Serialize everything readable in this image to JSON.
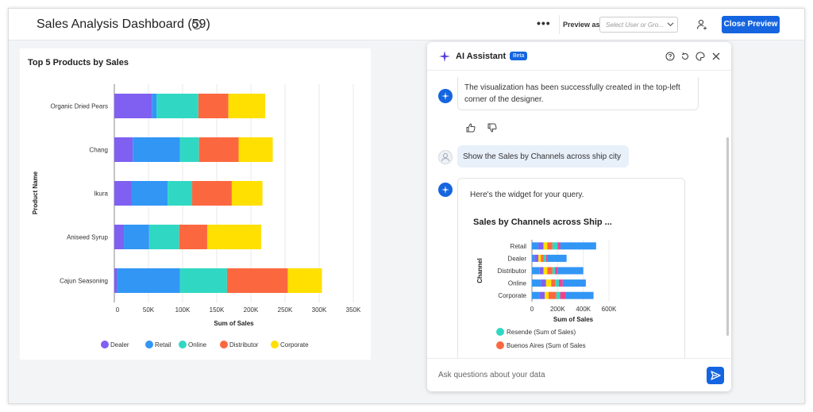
{
  "header": {
    "title": "Sales Analysis Dashboard (59)",
    "more_label": "•••",
    "preview_as_label": "Preview as",
    "select_placeholder": "Select User or Gro...",
    "close_preview_label": "Close Preview"
  },
  "main_chart": {
    "title": "Top 5 Products by Sales",
    "chart_data": {
      "type": "bar",
      "orientation": "horizontal",
      "stacked": true,
      "title": "Top 5 Products by Sales",
      "xlabel": "Sum of Sales",
      "ylabel": "Product Name",
      "xlim": [
        0,
        350000
      ],
      "xticks": [
        "0",
        "50K",
        "100K",
        "150K",
        "200K",
        "250K",
        "300K",
        "350K"
      ],
      "categories": [
        "Organic Dried Pears",
        "Chang",
        "Ikura",
        "Aniseed Syrup",
        "Cajun Seasoning"
      ],
      "series": [
        {
          "name": "Dealer",
          "color": "#8060f0",
          "values": [
            55000,
            27000,
            25000,
            14000,
            4000
          ]
        },
        {
          "name": "Retail",
          "color": "#3296f5",
          "values": [
            7000,
            69000,
            53000,
            37000,
            92000
          ]
        },
        {
          "name": "Online",
          "color": "#30d8c4",
          "values": [
            61000,
            28000,
            36000,
            44000,
            69000
          ]
        },
        {
          "name": "Distributor",
          "color": "#fb6840",
          "values": [
            44000,
            58000,
            58000,
            41000,
            89000
          ]
        },
        {
          "name": "Corporate",
          "color": "#ffe000",
          "values": [
            54000,
            50000,
            45000,
            79000,
            50000
          ]
        }
      ],
      "grid": true,
      "legend": "bottom"
    }
  },
  "assistant": {
    "title": "AI Assistant",
    "badge": "Beta",
    "messages": {
      "bot_1": "The visualization has been successfully created in the top-left corner of the designer.",
      "user_1": "Show the Sales by Channels across ship city",
      "bot_2": "Here's the widget for your query."
    },
    "widget": {
      "title": "Sales by Channels across Ship ...",
      "chart_data": {
        "type": "bar",
        "orientation": "horizontal",
        "stacked": true,
        "xlabel": "Sum of Sales",
        "ylabel": "Channel",
        "xlim": [
          0,
          600000
        ],
        "xticks": [
          "0",
          "200K",
          "400K",
          "600K"
        ],
        "categories": [
          "Retail",
          "Dealer",
          "Distributor",
          "Online",
          "Corporate"
        ],
        "series": [
          {
            "color": "#3296f5",
            "values": [
              50000,
              20000,
              60000,
              70000,
              60000
            ]
          },
          {
            "color": "#8060f0",
            "values": [
              40000,
              30000,
              30000,
              40000,
              40000
            ]
          },
          {
            "color": "#ffe000",
            "values": [
              30000,
              20000,
              30000,
              40000,
              30000
            ]
          },
          {
            "color": "#fb6840",
            "values": [
              40000,
              20000,
              40000,
              30000,
              60000
            ]
          },
          {
            "color": "#30d8c4",
            "values": [
              40000,
              20000,
              20000,
              30000,
              30000
            ]
          },
          {
            "color": "#f04090",
            "values": [
              20000,
              10000,
              20000,
              30000,
              40000
            ]
          },
          {
            "color": "#3296f5",
            "values": [
              280000,
              150000,
              200000,
              180000,
              220000
            ]
          }
        ],
        "legend": [
          {
            "name": "Resende (Sum of Sales)",
            "color": "#30d8c4"
          },
          {
            "name": "Buenos Aires (Sum of Sales",
            "color": "#fb6840"
          }
        ]
      }
    },
    "input_placeholder": "Ask questions about your data"
  }
}
